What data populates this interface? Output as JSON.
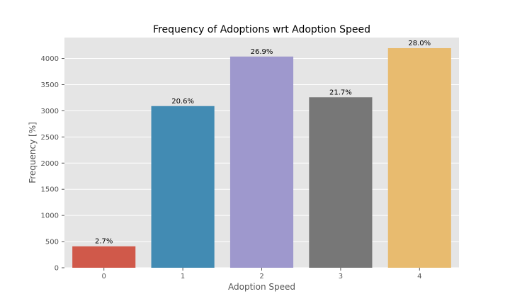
{
  "chart_data": {
    "type": "bar",
    "title": "Frequency of Adoptions wrt Adoption Speed",
    "xlabel": "Adoption Speed",
    "ylabel": "Frequency [%]",
    "categories": [
      "0",
      "1",
      "2",
      "3",
      "4"
    ],
    "values": [
      410,
      3090,
      4037,
      3259,
      4197
    ],
    "data_labels": [
      "2.7%",
      "20.6%",
      "26.9%",
      "21.7%",
      "28.0%"
    ],
    "ylim": [
      0,
      4400
    ],
    "yticks": [
      0,
      500,
      1000,
      1500,
      2000,
      2500,
      3000,
      3500,
      4000
    ],
    "grid": true,
    "colors": {
      "bars": [
        "#d0594a",
        "#428bb3",
        "#9e98cd",
        "#777777",
        "#e8bb6f"
      ],
      "plot_background": "#e5e5e5",
      "grid": "#ffffff"
    }
  }
}
